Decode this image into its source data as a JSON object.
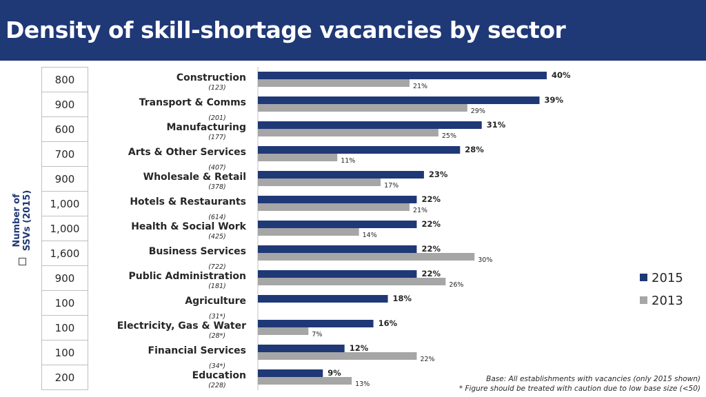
{
  "header": {
    "title": "Density of skill-shortage vacancies by sector"
  },
  "ssv_label": {
    "line1": "Number of",
    "line2": "SSVs (2015)"
  },
  "ssv_counts": [
    "800",
    "900",
    "600",
    "700",
    "900",
    "1,000",
    "1,000",
    "1,600",
    "900",
    "100",
    "100",
    "100",
    "200"
  ],
  "legend": [
    {
      "label": "2015",
      "color": "#1f3876"
    },
    {
      "label": "2013",
      "color": "#a6a6a6"
    }
  ],
  "footnotes": {
    "base": "Base: All establishments with vacancies (only 2015 shown)",
    "caution": "* Figure should be treated with caution due to low base size (<50)"
  },
  "chart_data": {
    "type": "bar",
    "orientation": "horizontal",
    "title": "Density of skill-shortage vacancies by sector",
    "categories": [
      "Construction",
      "Transport & Comms",
      "Manufacturing",
      "Arts & Other Services",
      "Wholesale & Retail",
      "Hotels & Restaurants",
      "Health & Social Work",
      "Business Services",
      "Public Administration",
      "Agriculture",
      "Electricity, Gas & Water",
      "Financial Services",
      "Education"
    ],
    "base_sizes": [
      "(123)",
      "(201)",
      "(177)",
      "(407)",
      "(378)",
      "(614)",
      "(425)",
      "(722)",
      "(181)",
      "(31*)",
      "(28*)",
      "(34*)",
      "(228)"
    ],
    "series": [
      {
        "name": "2015",
        "color": "#1f3876",
        "values": [
          40,
          39,
          31,
          28,
          23,
          22,
          22,
          22,
          22,
          18,
          16,
          12,
          9
        ],
        "labels": [
          "40%",
          "39%",
          "31%",
          "28%",
          "23%",
          "22%",
          "22%",
          "22%",
          "22%",
          "18%",
          "16%",
          "12%",
          "9%"
        ]
      },
      {
        "name": "2013",
        "color": "#a6a6a6",
        "values": [
          21,
          29,
          25,
          11,
          17,
          21,
          14,
          30,
          26,
          null,
          7,
          22,
          13
        ],
        "labels": [
          "21%",
          "29%",
          "25%",
          "11%",
          "17%",
          "21%",
          "14%",
          "30%",
          "26%",
          "",
          "7%",
          "22%",
          "13%"
        ]
      }
    ],
    "xlim": [
      0,
      40
    ],
    "grid": false,
    "legend_position": "right"
  }
}
